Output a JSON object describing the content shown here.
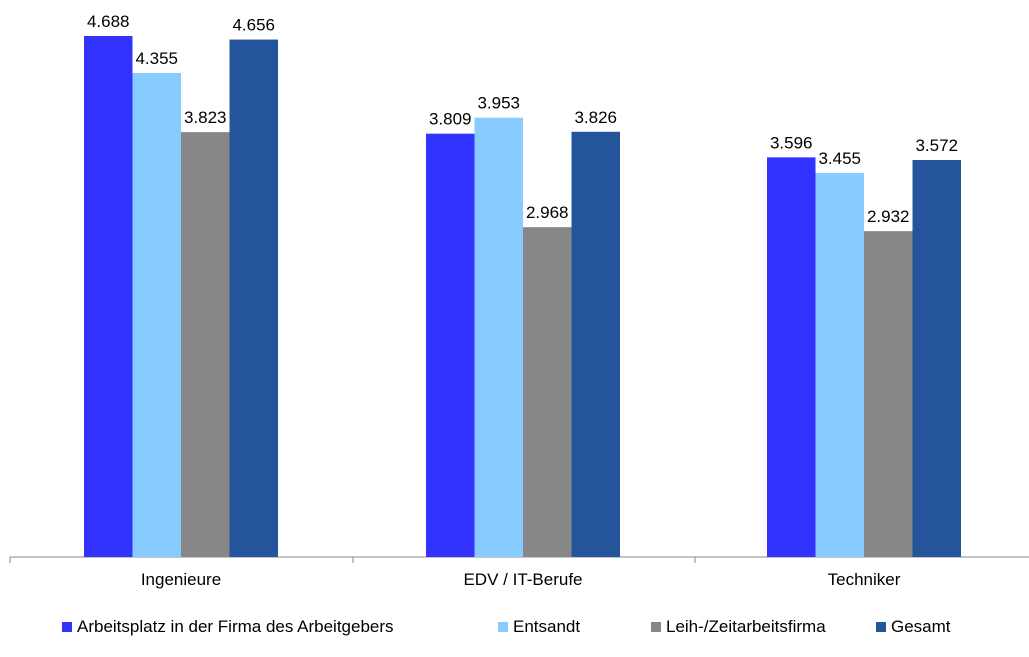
{
  "chart_data": {
    "type": "bar",
    "categories": [
      "Ingenieure",
      "EDV / IT-Berufe",
      "Techniker"
    ],
    "series": [
      {
        "name": "Arbeitsplatz in der Firma des Arbeitgebers",
        "color": "#3333ff",
        "values": [
          4688,
          3809,
          3596
        ],
        "labels": [
          "4.688",
          "3.809",
          "3.596"
        ]
      },
      {
        "name": "Entsandt",
        "color": "#87cbff",
        "values": [
          4355,
          3953,
          3455
        ],
        "labels": [
          "4.355",
          "3.953",
          "3.455"
        ]
      },
      {
        "name": "Leih-/Zeitarbeitsfirma",
        "color": "#878787",
        "values": [
          3823,
          2968,
          2932
        ],
        "labels": [
          "3.823",
          "2.968",
          "2.932"
        ]
      },
      {
        "name": "Gesamt",
        "color": "#245499",
        "values": [
          4656,
          3826,
          3572
        ],
        "labels": [
          "4.656",
          "3.826",
          "3.572"
        ]
      }
    ],
    "ylim": [
      0,
      4688
    ],
    "grid": false,
    "legend_position": "bottom",
    "data_labels": true
  }
}
